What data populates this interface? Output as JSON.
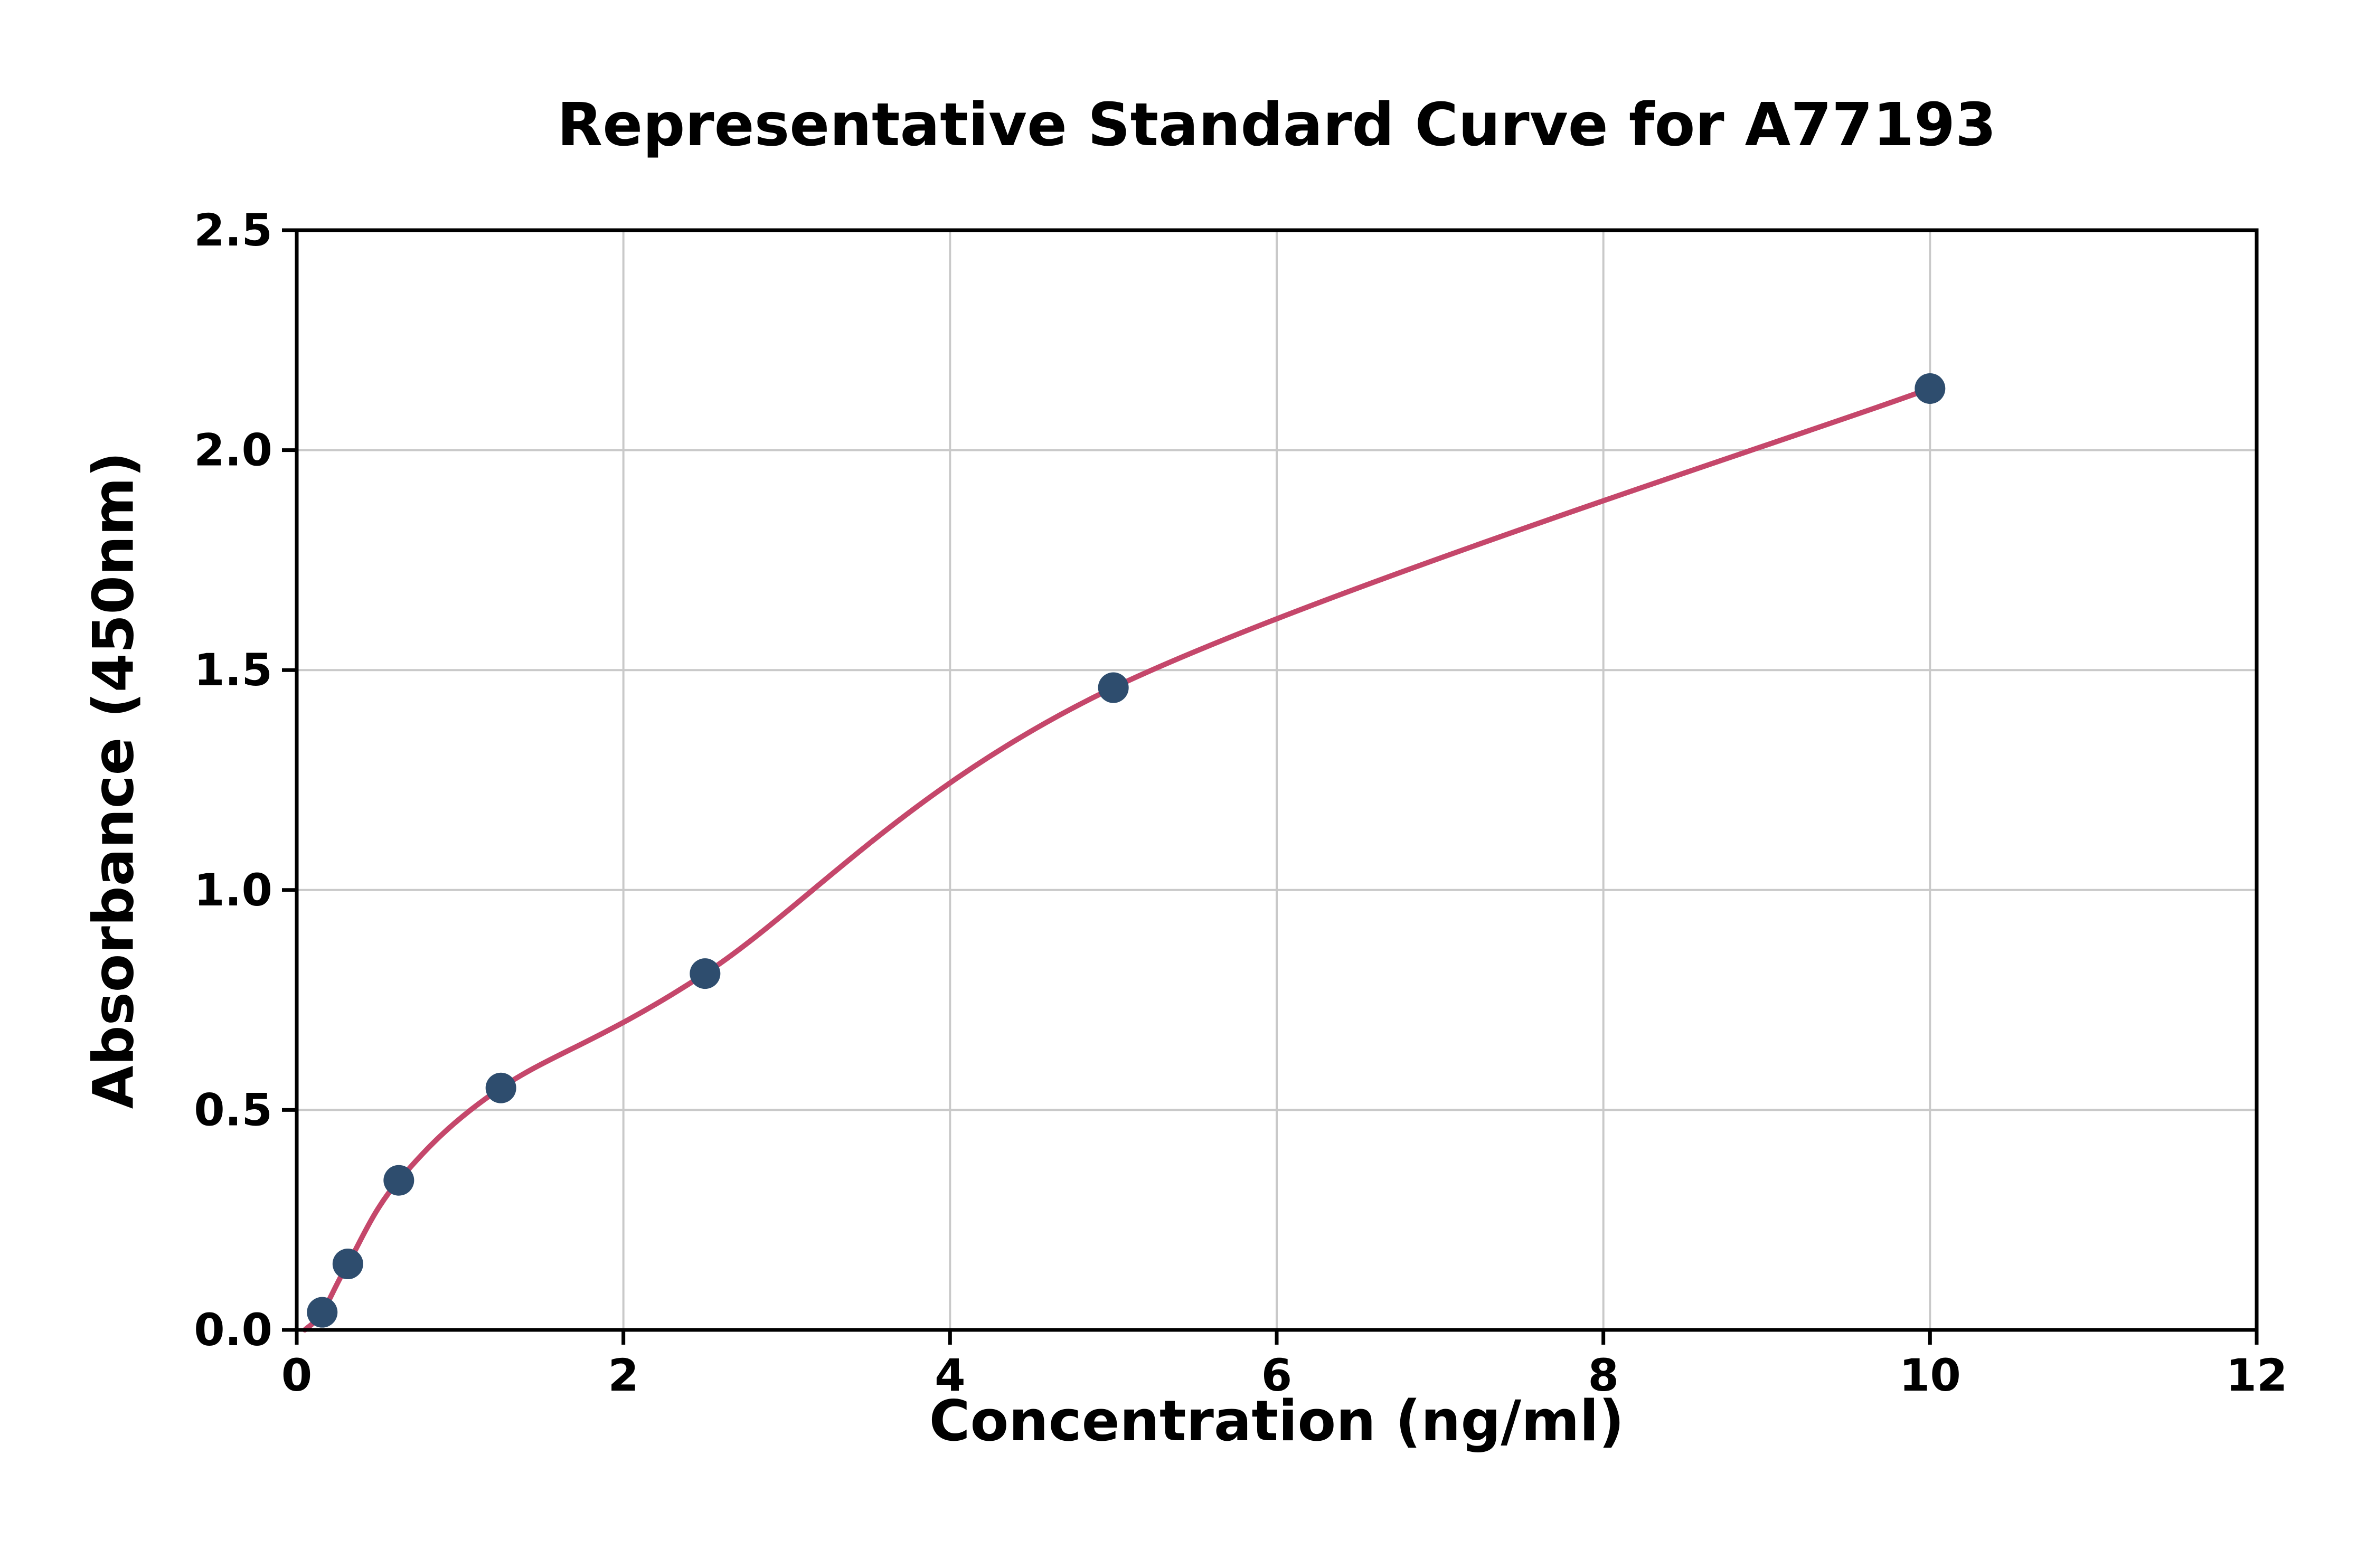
{
  "chart_data": {
    "type": "scatter",
    "title": "Representative Standard Curve for A77193",
    "xlabel": "Concentration (ng/ml)",
    "ylabel": "Absorbance (450nm)",
    "xlim": [
      0,
      12
    ],
    "ylim": [
      0,
      2.5
    ],
    "xticks": {
      "values": [
        0,
        2,
        4,
        6,
        8,
        10,
        12
      ],
      "labels": [
        "0",
        "2",
        "4",
        "6",
        "8",
        "10",
        "12"
      ]
    },
    "yticks": {
      "values": [
        0,
        0.5,
        1.0,
        1.5,
        2.0,
        2.5
      ],
      "labels": [
        "0.0",
        "0.5",
        "1.0",
        "1.5",
        "2.0",
        "2.5"
      ]
    },
    "grid": true,
    "legend": "none",
    "points": [
      {
        "x": 0.156,
        "y": 0.04
      },
      {
        "x": 0.313,
        "y": 0.15
      },
      {
        "x": 0.625,
        "y": 0.34
      },
      {
        "x": 1.25,
        "y": 0.55
      },
      {
        "x": 2.5,
        "y": 0.81
      },
      {
        "x": 5,
        "y": 1.46
      },
      {
        "x": 10,
        "y": 2.14
      }
    ],
    "fit_curve": {
      "style": "smooth-through-points",
      "start": {
        "x": 0.05,
        "y": 0.0
      }
    },
    "colors": {
      "curve": "#c5476b",
      "marker": "#2e4d6e",
      "grid": "#c9c9c9",
      "axis": "#000000",
      "text": "#000000",
      "background": "#ffffff"
    }
  }
}
